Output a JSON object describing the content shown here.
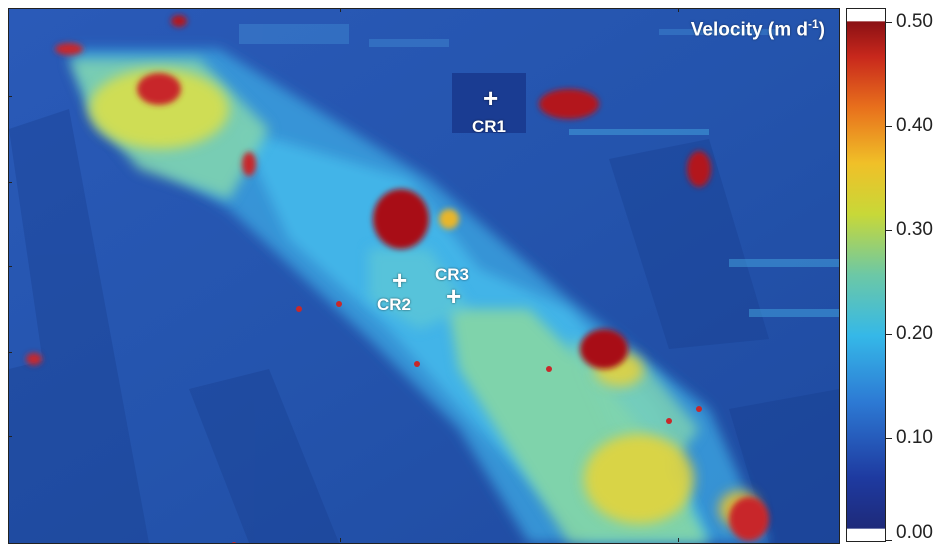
{
  "legend": {
    "title_main": "Velocity (m d",
    "title_exponent": "-1",
    "title_end": ")",
    "ticks": [
      "0.50",
      "0.40",
      "0.30",
      "0.20",
      "0.10",
      "0.00"
    ],
    "range": [
      0.0,
      0.5
    ],
    "colormap": "jet"
  },
  "markers": [
    {
      "id": "CR1",
      "label": "CR1"
    },
    {
      "id": "CR2",
      "label": "CR2"
    },
    {
      "id": "CR3",
      "label": "CR3"
    }
  ],
  "colors": {
    "background_low": "#1f4fa8",
    "deep_blue": "#1a3a8f",
    "cyan": "#35b8e8",
    "yellow": "#e8d23a",
    "red": "#b3141b"
  }
}
